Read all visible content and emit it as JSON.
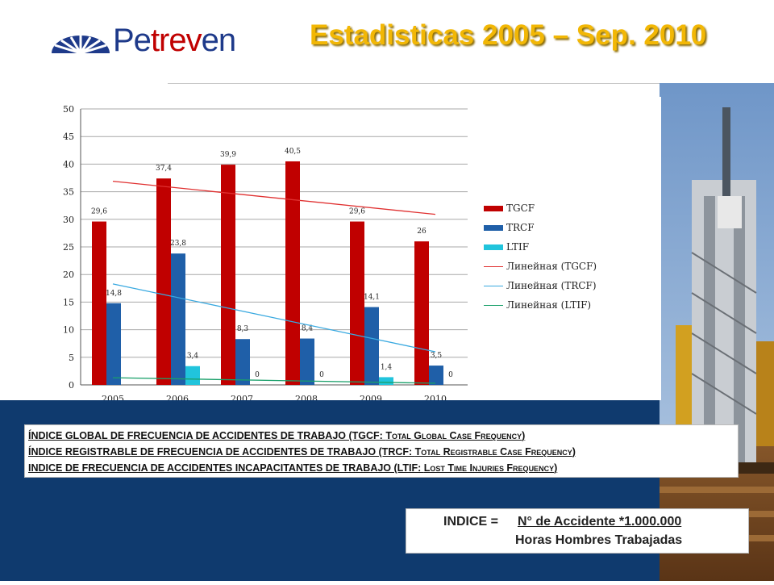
{
  "header": {
    "logo_text_1": "Pe",
    "logo_text_2": "trev",
    "logo_text_3": "en",
    "title": "Estadisticas 2005 – Sep. 2010"
  },
  "colors": {
    "tgcf": "#c00000",
    "trcf": "#1f5fa8",
    "ltif": "#21c4dc",
    "trend_tgcf": "#e03030",
    "trend_trcf": "#39a9e0",
    "trend_ltif": "#1aa06a",
    "title": "#f2b705",
    "band": "#0f3a6e"
  },
  "chart_data": {
    "type": "bar",
    "categories": [
      "2005",
      "2006",
      "2007",
      "2008",
      "2009",
      "2010"
    ],
    "series": [
      {
        "name": "TGCF",
        "values": [
          29.6,
          37.4,
          39.9,
          40.5,
          29.6,
          26
        ],
        "labels": [
          "29,6",
          "37,4",
          "39,9",
          "40,5",
          "29,6",
          "26"
        ]
      },
      {
        "name": "TRCF",
        "values": [
          14.8,
          23.8,
          8.3,
          8.4,
          14.1,
          3.5
        ],
        "labels": [
          "14,8",
          "23,8",
          "8,3",
          "8,4",
          "14,1",
          "3,5"
        ]
      },
      {
        "name": "LTIF",
        "values": [
          null,
          3.4,
          0,
          0,
          1.4,
          0
        ],
        "labels": [
          "",
          "3,4",
          "0",
          "0",
          "1,4",
          "0"
        ]
      }
    ],
    "trendlines": [
      {
        "name": "Линейная (TGCF)",
        "start": 36.9,
        "end": 30.9
      },
      {
        "name": "Линейная (TRCF)",
        "start": 18.3,
        "end": 6.0
      },
      {
        "name": "Линейная (LTIF)",
        "start": 1.3,
        "end": 0.3
      }
    ],
    "yticks": [
      "0",
      "5",
      "10",
      "15",
      "20",
      "25",
      "30",
      "35",
      "40",
      "45",
      "50"
    ],
    "ylim": [
      0,
      50
    ],
    "grid": true,
    "legend_position": "right"
  },
  "legend": [
    {
      "label": "TGCF",
      "kind": "box",
      "color": "#c00000"
    },
    {
      "label": "TRCF",
      "kind": "box",
      "color": "#1f5fa8"
    },
    {
      "label": "LTIF",
      "kind": "box",
      "color": "#21c4dc"
    },
    {
      "label": "Линейная (TGCF)",
      "kind": "line",
      "color": "#e03030"
    },
    {
      "label": "Линейная (TRCF)",
      "kind": "line",
      "color": "#39a9e0"
    },
    {
      "label": "Линейная (LTIF)",
      "kind": "line",
      "color": "#1aa06a"
    }
  ],
  "definitions": {
    "line1_a": "ÍNDICE GLOBAL DE FRECUENCIA DE ACCIDENTES DE TRABAJO (TGCF: ",
    "line1_b": "Total Global Case Frequency",
    "line1_c": ")",
    "line2_a": "ÍNDICE REGISTRABLE DE FRECUENCIA DE ACCIDENTES DE TRABAJO (TRCF: ",
    "line2_b": "Total Registrable Case Frequency",
    "line2_c": ")",
    "line3_a": "INDICE DE FRECUENCIA DE ACCIDENTES INCAPACITANTES DE TRABAJO (LTIF: ",
    "line3_b": "Lost Time Injuries Frequency",
    "line3_c": ")"
  },
  "formula": {
    "lhs": "INDICE =",
    "numerator": "N° de Accidente *1.000.000",
    "denominator": "Horas Hombres Trabajadas"
  }
}
